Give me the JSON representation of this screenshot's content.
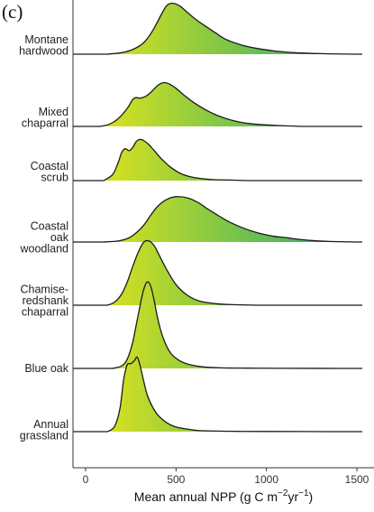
{
  "panel_label": "(c)",
  "chart_data": {
    "type": "ridgeline",
    "xlabel_parts": {
      "main": "Mean annual NPP (g C m",
      "sup1": "−2",
      "mid": "yr",
      "sup2": "−1",
      "end": ")"
    },
    "xlim": [
      -70,
      1530
    ],
    "xticks": [
      0,
      500,
      1000,
      1500
    ],
    "colors": {
      "low": "#e6e619",
      "high": "#1fa873"
    },
    "series": [
      {
        "name": "Montane hardwood",
        "label_lines": [
          "Montane",
          "hardwood"
        ],
        "x": [
          120,
          200,
          260,
          320,
          370,
          420,
          450,
          480,
          520,
          560,
          600,
          660,
          720,
          780,
          860,
          950,
          1050,
          1150,
          1300,
          1480
        ],
        "y": [
          0.0,
          0.03,
          0.09,
          0.22,
          0.45,
          0.78,
          0.95,
          0.99,
          0.94,
          0.82,
          0.7,
          0.55,
          0.41,
          0.28,
          0.18,
          0.11,
          0.06,
          0.03,
          0.01,
          0.0
        ]
      },
      {
        "name": "Mixed chaparral",
        "label_lines": [
          "Mixed",
          "chaparral"
        ],
        "x": [
          80,
          130,
          180,
          230,
          260,
          280,
          300,
          330,
          360,
          400,
          430,
          460,
          500,
          540,
          600,
          660,
          730,
          820,
          920,
          1050,
          1200
        ],
        "y": [
          0.0,
          0.04,
          0.15,
          0.35,
          0.52,
          0.56,
          0.55,
          0.58,
          0.66,
          0.8,
          0.85,
          0.83,
          0.74,
          0.62,
          0.46,
          0.33,
          0.21,
          0.11,
          0.05,
          0.02,
          0.0
        ]
      },
      {
        "name": "Coastal scrub",
        "label_lines": [
          "Coastal",
          "scrub"
        ],
        "x": [
          100,
          150,
          180,
          200,
          220,
          240,
          260,
          280,
          300,
          320,
          350,
          380,
          420,
          470,
          530,
          600,
          700,
          800,
          900
        ],
        "y": [
          0.0,
          0.12,
          0.35,
          0.55,
          0.62,
          0.58,
          0.64,
          0.76,
          0.8,
          0.78,
          0.7,
          0.58,
          0.42,
          0.26,
          0.13,
          0.06,
          0.02,
          0.01,
          0.0
        ]
      },
      {
        "name": "Coastal oak woodland",
        "label_lines": [
          "Coastal",
          "oak",
          "woodland"
        ],
        "x": [
          100,
          180,
          240,
          280,
          320,
          360,
          400,
          450,
          500,
          560,
          620,
          680,
          740,
          800,
          880,
          960,
          1040,
          1100,
          1160,
          1250,
          1350,
          1500
        ],
        "y": [
          0.0,
          0.02,
          0.08,
          0.18,
          0.32,
          0.52,
          0.7,
          0.83,
          0.88,
          0.86,
          0.77,
          0.63,
          0.5,
          0.38,
          0.26,
          0.17,
          0.11,
          0.09,
          0.06,
          0.03,
          0.01,
          0.0
        ]
      },
      {
        "name": "Chamise-redshank chaparral",
        "label_lines": [
          "Chamise-",
          "redshank",
          "chaparral"
        ],
        "x": [
          120,
          160,
          200,
          230,
          260,
          290,
          320,
          350,
          380,
          410,
          450,
          500,
          560,
          630,
          720,
          820,
          950
        ],
        "y": [
          0.0,
          0.06,
          0.22,
          0.45,
          0.75,
          1.02,
          1.22,
          1.25,
          1.15,
          0.95,
          0.68,
          0.4,
          0.2,
          0.08,
          0.03,
          0.01,
          0.0
        ]
      },
      {
        "name": "Blue oak",
        "label_lines": [
          "Blue oak"
        ],
        "x": [
          150,
          200,
          230,
          260,
          280,
          300,
          320,
          340,
          360,
          380,
          400,
          430,
          470,
          520,
          580,
          650,
          750,
          900,
          1100,
          1500
        ],
        "y": [
          0.0,
          0.05,
          0.18,
          0.5,
          0.85,
          1.2,
          1.52,
          1.68,
          1.6,
          1.3,
          0.95,
          0.58,
          0.3,
          0.15,
          0.07,
          0.03,
          0.01,
          0.005,
          0.002,
          0.0
        ]
      },
      {
        "name": "Annual grassland",
        "label_lines": [
          "Annual",
          "grassland"
        ],
        "x": [
          120,
          160,
          190,
          210,
          230,
          250,
          270,
          285,
          300,
          320,
          340,
          370,
          400,
          450,
          500,
          560,
          630,
          720,
          850,
          1000,
          1200,
          1500
        ],
        "y": [
          0.0,
          0.1,
          0.45,
          1.0,
          1.3,
          1.32,
          1.38,
          1.45,
          1.3,
          1.0,
          0.72,
          0.48,
          0.32,
          0.17,
          0.09,
          0.05,
          0.02,
          0.01,
          0.005,
          0.003,
          0.001,
          0.0
        ]
      }
    ]
  }
}
